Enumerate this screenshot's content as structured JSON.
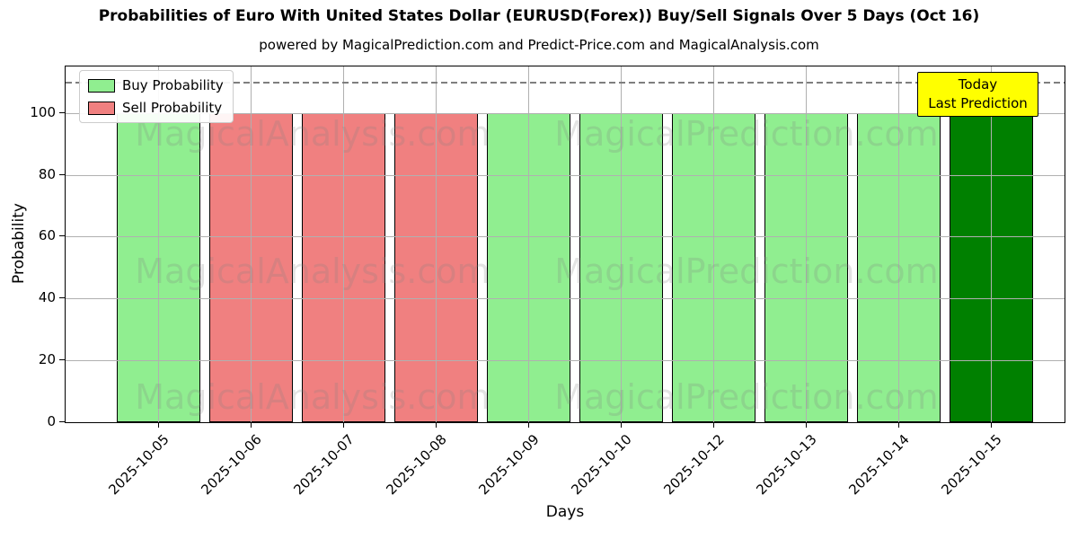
{
  "chart_data": {
    "type": "bar",
    "title": "Probabilities of Euro With United States Dollar (EURUSD(Forex)) Buy/Sell Signals Over 5 Days (Oct 16)",
    "subtitle": "powered by MagicalPrediction.com and Predict-Price.com and MagicalAnalysis.com",
    "xlabel": "Days",
    "ylabel": "Probability",
    "categories": [
      "2025-10-05",
      "2025-10-06",
      "2025-10-07",
      "2025-10-08",
      "2025-10-09",
      "2025-10-10",
      "2025-10-12",
      "2025-10-13",
      "2025-10-14",
      "2025-10-15"
    ],
    "values": [
      100,
      100,
      100,
      100,
      100,
      100,
      100,
      100,
      100,
      100
    ],
    "bar_colors": [
      "#90ee90",
      "#f08080",
      "#f08080",
      "#f08080",
      "#90ee90",
      "#90ee90",
      "#90ee90",
      "#90ee90",
      "#90ee90",
      "#008000"
    ],
    "bar_signal": [
      "buy",
      "sell",
      "sell",
      "sell",
      "buy",
      "buy",
      "buy",
      "buy",
      "buy",
      "buy-today"
    ],
    "ylim": [
      0,
      115
    ],
    "yticks": [
      0,
      20,
      40,
      60,
      80,
      100
    ],
    "grid": true,
    "reference_line": {
      "y": 110,
      "style": "dashed",
      "color": "#7f7f7f"
    },
    "legend": {
      "position": "upper left",
      "entries": [
        {
          "label": "Buy Probability",
          "color": "#90ee90"
        },
        {
          "label": "Sell Probability",
          "color": "#f08080"
        }
      ]
    },
    "annotation": {
      "lines": [
        "Today",
        "Last Prediction"
      ],
      "bg_color": "#ffff00",
      "border_color": "#000000",
      "x_category": "2025-10-15"
    },
    "watermarks": [
      "MagicalAnalysis.com",
      "MagicalPrediction.com"
    ]
  }
}
